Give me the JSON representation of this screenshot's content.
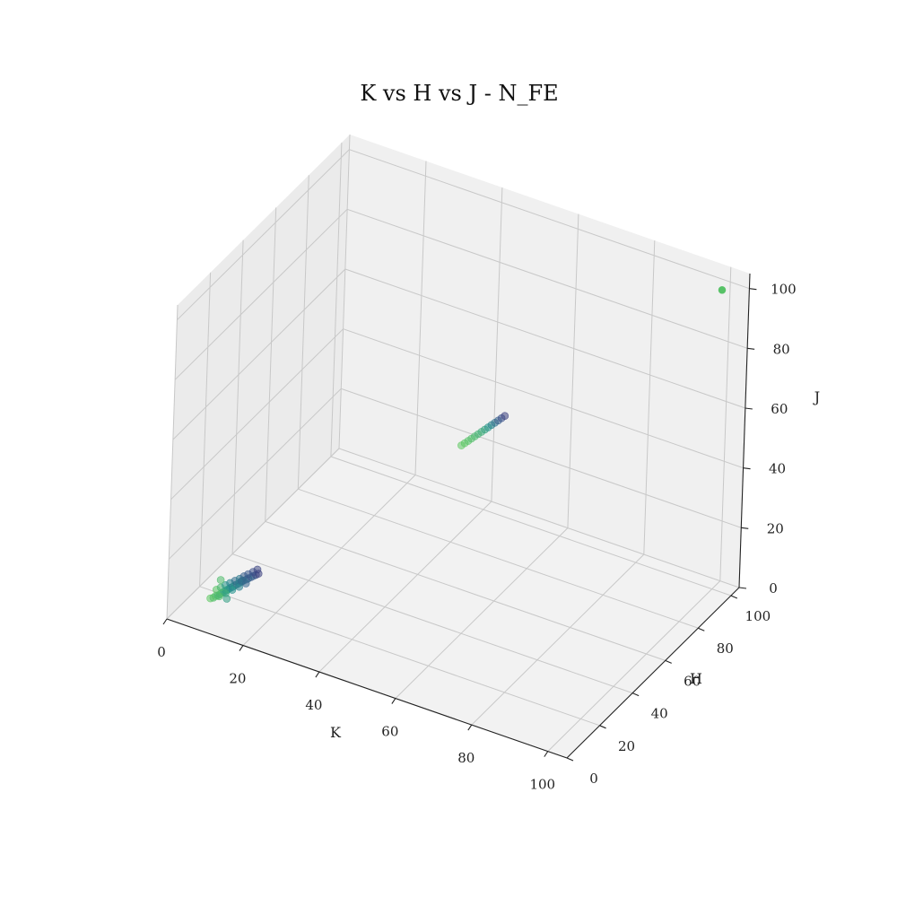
{
  "chart_data": {
    "type": "scatter",
    "projection": "3d",
    "title": "K vs H vs J - N_FE",
    "xlabel": "K",
    "ylabel": "H",
    "zlabel": "J",
    "xlim": [
      0,
      105
    ],
    "ylim": [
      0,
      105
    ],
    "zlim": [
      0,
      105
    ],
    "xticks": [
      "0",
      "20",
      "40",
      "60",
      "80",
      "100"
    ],
    "yticks": [
      "0",
      "20",
      "40",
      "60",
      "80",
      "100"
    ],
    "zticks": [
      "0",
      "20",
      "40",
      "60",
      "80",
      "100"
    ],
    "grid": true,
    "colormap": "viridis",
    "colors": {
      "dark": "#3b528b",
      "mid": "#21918c",
      "light": "#5ec962"
    },
    "series": [
      {
        "x": [
          6.2,
          6.8,
          7.1,
          7.6,
          8.0,
          8.3,
          8.7,
          9.1,
          9.4,
          9.8,
          10.2,
          10.6,
          11.0,
          11.4,
          11.8,
          12.2,
          12.7,
          13.1,
          13.6,
          14.0,
          14.5,
          15.0,
          6.9,
          7.7,
          8.6,
          9.5,
          10.4,
          11.3,
          12.1,
          12.9,
          13.8,
          14.6,
          8.1,
          9.2,
          10.3,
          11.5,
          12.6,
          7.3,
          9.9,
          12.4
        ],
        "y": [
          12.0,
          12.4,
          12.9,
          13.1,
          13.6,
          14.0,
          14.3,
          14.8,
          15.1,
          15.5,
          15.9,
          16.4,
          16.7,
          17.1,
          17.6,
          17.9,
          18.4,
          18.7,
          19.1,
          19.6,
          20.0,
          20.4,
          13.9,
          14.6,
          15.3,
          16.1,
          16.9,
          17.6,
          18.3,
          19.0,
          19.8,
          20.6,
          12.8,
          14.2,
          15.6,
          17.0,
          18.5,
          15.4,
          13.3,
          16.3
        ],
        "z": [
          3.1,
          3.4,
          3.8,
          4.1,
          4.4,
          4.8,
          5.2,
          5.5,
          5.9,
          6.3,
          6.6,
          7.0,
          7.4,
          7.7,
          8.1,
          8.5,
          8.8,
          9.2,
          9.6,
          9.9,
          10.3,
          10.7,
          5.3,
          6.0,
          6.8,
          7.5,
          8.2,
          8.9,
          9.7,
          10.4,
          11.1,
          11.8,
          4.2,
          5.0,
          5.8,
          6.6,
          7.4,
          7.9,
          3.9,
          9.4
        ],
        "c": [
          0.75,
          0.7,
          0.72,
          0.65,
          0.6,
          0.68,
          0.55,
          0.5,
          0.62,
          0.45,
          0.4,
          0.58,
          0.35,
          0.48,
          0.3,
          0.42,
          0.28,
          0.38,
          0.25,
          0.33,
          0.22,
          0.2,
          0.73,
          0.66,
          0.52,
          0.44,
          0.36,
          0.4,
          0.3,
          0.27,
          0.24,
          0.21,
          0.7,
          0.6,
          0.5,
          0.43,
          0.32,
          0.69,
          0.56,
          0.35
        ]
      },
      {
        "x": [
          53.0,
          53.6,
          54.2,
          54.8,
          55.4,
          56.0,
          56.6,
          57.2,
          57.8,
          58.4,
          59.0,
          59.6,
          60.2,
          60.8
        ],
        "y": [
          53.2,
          53.8,
          54.4,
          55.0,
          55.6,
          56.2,
          56.8,
          57.4,
          58.0,
          58.6,
          59.2,
          59.8,
          60.4,
          61.0
        ],
        "z": [
          52.6,
          53.3,
          54.0,
          54.7,
          55.4,
          56.1,
          56.8,
          57.5,
          58.2,
          58.9,
          59.6,
          60.3,
          61.0,
          61.7
        ],
        "c": [
          0.75,
          0.74,
          0.72,
          0.7,
          0.68,
          0.65,
          0.62,
          0.58,
          0.52,
          0.45,
          0.38,
          0.3,
          0.25,
          0.2
        ]
      },
      {
        "x": [
          100
        ],
        "y": [
          100
        ],
        "z": [
          100
        ],
        "c": [
          0.72
        ]
      }
    ]
  }
}
